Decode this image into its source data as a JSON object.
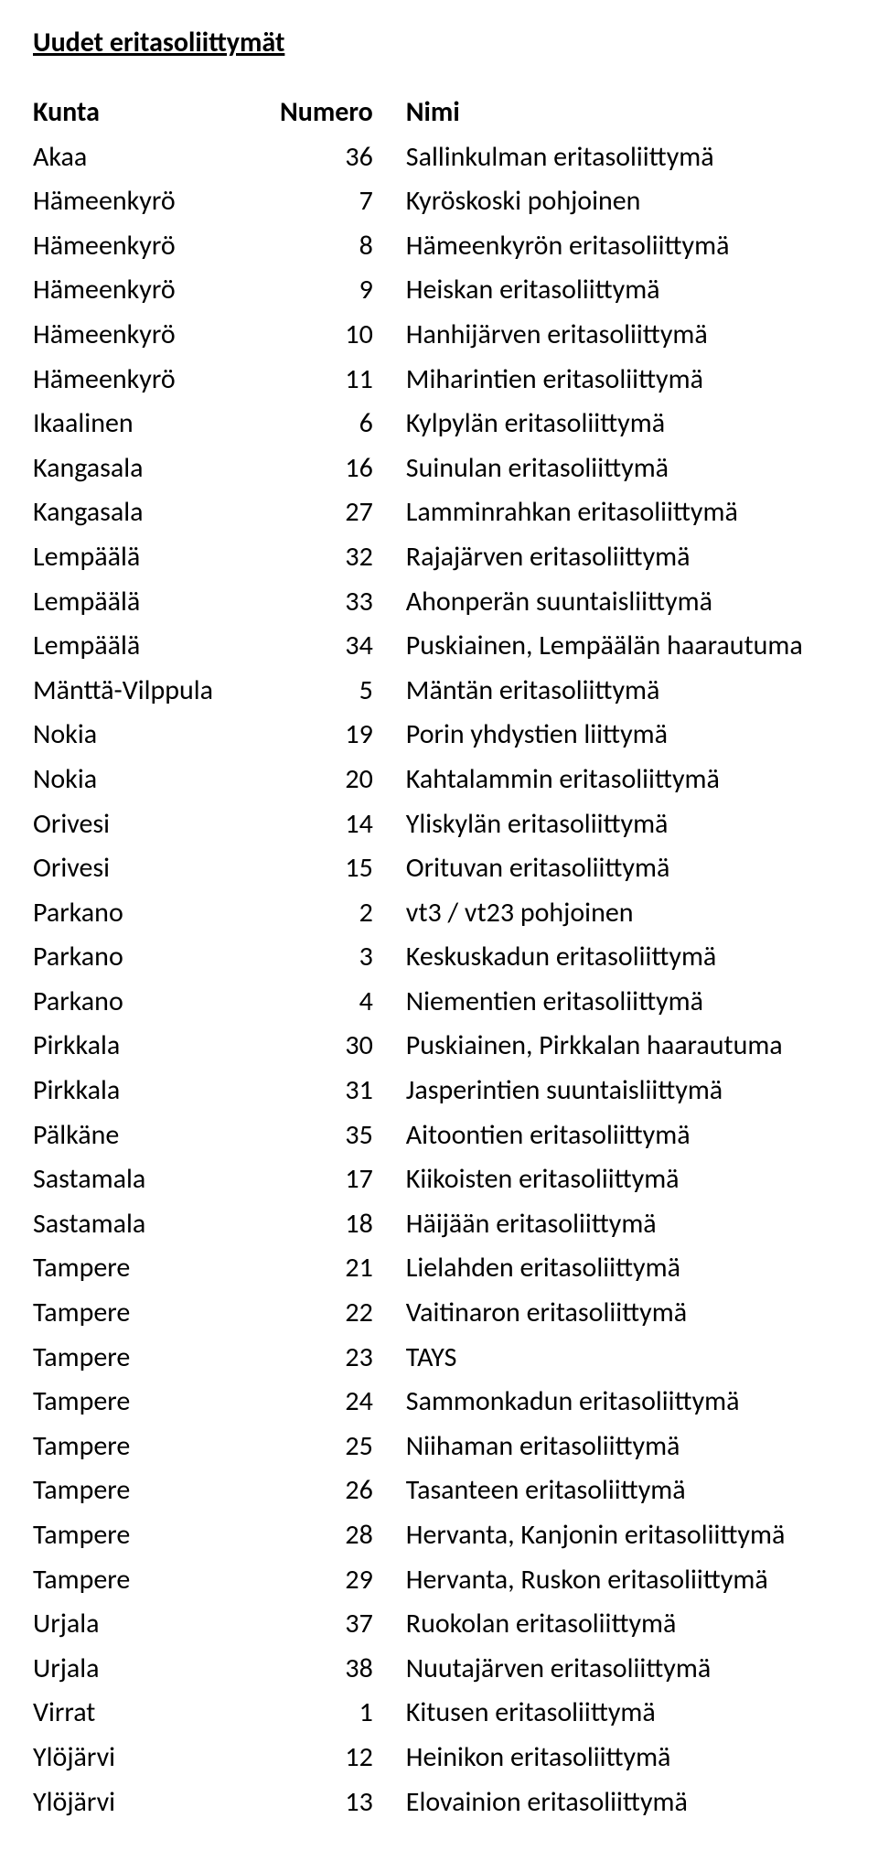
{
  "title": "Uudet eritasoliittymät",
  "headers": {
    "kunta": "Kunta",
    "numero": "Numero",
    "nimi": "Nimi"
  },
  "rows": [
    {
      "kunta": "Akaa",
      "numero": 36,
      "nimi": "Sallinkulman eritasoliittymä"
    },
    {
      "kunta": "Hämeenkyrö",
      "numero": 7,
      "nimi": "Kyröskoski pohjoinen"
    },
    {
      "kunta": "Hämeenkyrö",
      "numero": 8,
      "nimi": "Hämeenkyrön eritasoliittymä"
    },
    {
      "kunta": "Hämeenkyrö",
      "numero": 9,
      "nimi": "Heiskan eritasoliittymä"
    },
    {
      "kunta": "Hämeenkyrö",
      "numero": 10,
      "nimi": "Hanhijärven eritasoliittymä"
    },
    {
      "kunta": "Hämeenkyrö",
      "numero": 11,
      "nimi": "Miharintien eritasoliittymä"
    },
    {
      "kunta": "Ikaalinen",
      "numero": 6,
      "nimi": "Kylpylän eritasoliittymä"
    },
    {
      "kunta": "Kangasala",
      "numero": 16,
      "nimi": "Suinulan eritasoliittymä"
    },
    {
      "kunta": "Kangasala",
      "numero": 27,
      "nimi": "Lamminrahkan eritasoliittymä"
    },
    {
      "kunta": "Lempäälä",
      "numero": 32,
      "nimi": "Rajajärven eritasoliittymä"
    },
    {
      "kunta": "Lempäälä",
      "numero": 33,
      "nimi": "Ahonperän suuntaisliittymä"
    },
    {
      "kunta": "Lempäälä",
      "numero": 34,
      "nimi": "Puskiainen, Lempäälän haarautuma"
    },
    {
      "kunta": "Mänttä-Vilppula",
      "numero": 5,
      "nimi": "Mäntän eritasoliittymä"
    },
    {
      "kunta": "Nokia",
      "numero": 19,
      "nimi": "Porin yhdystien liittymä"
    },
    {
      "kunta": "Nokia",
      "numero": 20,
      "nimi": "Kahtalammin eritasoliittymä"
    },
    {
      "kunta": "Orivesi",
      "numero": 14,
      "nimi": "Yliskylän eritasoliittymä"
    },
    {
      "kunta": "Orivesi",
      "numero": 15,
      "nimi": "Orituvan eritasoliittymä"
    },
    {
      "kunta": "Parkano",
      "numero": 2,
      "nimi": "vt3 / vt23 pohjoinen"
    },
    {
      "kunta": "Parkano",
      "numero": 3,
      "nimi": "Keskuskadun eritasoliittymä"
    },
    {
      "kunta": "Parkano",
      "numero": 4,
      "nimi": "Niementien eritasoliittymä"
    },
    {
      "kunta": "Pirkkala",
      "numero": 30,
      "nimi": "Puskiainen, Pirkkalan haarautuma"
    },
    {
      "kunta": "Pirkkala",
      "numero": 31,
      "nimi": "Jasperintien suuntaisliittymä"
    },
    {
      "kunta": "Pälkäne",
      "numero": 35,
      "nimi": "Aitoontien eritasoliittymä"
    },
    {
      "kunta": "Sastamala",
      "numero": 17,
      "nimi": "Kiikoisten eritasoliittymä"
    },
    {
      "kunta": "Sastamala",
      "numero": 18,
      "nimi": "Häijään eritasoliittymä"
    },
    {
      "kunta": "Tampere",
      "numero": 21,
      "nimi": "Lielahden eritasoliittymä"
    },
    {
      "kunta": "Tampere",
      "numero": 22,
      "nimi": "Vaitinaron eritasoliittymä"
    },
    {
      "kunta": "Tampere",
      "numero": 23,
      "nimi": "TAYS"
    },
    {
      "kunta": "Tampere",
      "numero": 24,
      "nimi": "Sammonkadun eritasoliittymä"
    },
    {
      "kunta": "Tampere",
      "numero": 25,
      "nimi": "Niihaman eritasoliittymä"
    },
    {
      "kunta": "Tampere",
      "numero": 26,
      "nimi": "Tasanteen eritasoliittymä"
    },
    {
      "kunta": "Tampere",
      "numero": 28,
      "nimi": "Hervanta, Kanjonin eritasoliittymä"
    },
    {
      "kunta": "Tampere",
      "numero": 29,
      "nimi": "Hervanta, Ruskon eritasoliittymä"
    },
    {
      "kunta": "Urjala",
      "numero": 37,
      "nimi": "Ruokolan eritasoliittymä"
    },
    {
      "kunta": "Urjala",
      "numero": 38,
      "nimi": "Nuutajärven eritasoliittymä"
    },
    {
      "kunta": "Virrat",
      "numero": 1,
      "nimi": "Kitusen eritasoliittymä"
    },
    {
      "kunta": "Ylöjärvi",
      "numero": 12,
      "nimi": "Heinikon eritasoliittymä"
    },
    {
      "kunta": "Ylöjärvi",
      "numero": 13,
      "nimi": "Elovainion eritasoliittymä"
    }
  ]
}
